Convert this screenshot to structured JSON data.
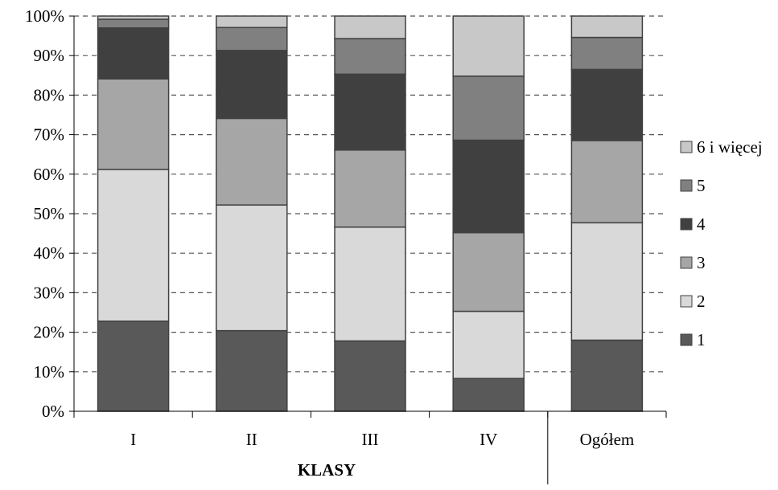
{
  "chart_data": {
    "type": "bar",
    "stacked": true,
    "percent": true,
    "categories": [
      "I",
      "II",
      "III",
      "IV",
      "Ogółem"
    ],
    "xlabel": "KLASY",
    "ylabel": "",
    "ylim": [
      0,
      100
    ],
    "yticks": [
      "0%",
      "10%",
      "20%",
      "30%",
      "40%",
      "50%",
      "60%",
      "70%",
      "80%",
      "90%",
      "100%"
    ],
    "grid": "horizontal dashed",
    "legend_position": "right",
    "series": [
      {
        "name": "1",
        "color": "#595959",
        "values": [
          22.8,
          20.4,
          17.8,
          8.3,
          18.0
        ]
      },
      {
        "name": "2",
        "color": "#d9d9d9",
        "values": [
          38.4,
          31.8,
          28.8,
          17.0,
          29.7
        ]
      },
      {
        "name": "3",
        "color": "#a6a6a6",
        "values": [
          22.9,
          21.9,
          19.5,
          19.9,
          20.8
        ]
      },
      {
        "name": "4",
        "color": "#404040",
        "values": [
          12.9,
          17.2,
          19.2,
          23.4,
          18.0
        ]
      },
      {
        "name": "5",
        "color": "#808080",
        "values": [
          2.2,
          5.8,
          9.0,
          16.2,
          8.1
        ]
      },
      {
        "name": "6 i więcej",
        "color": "#c8c8c8",
        "values": [
          0.8,
          2.9,
          5.7,
          15.2,
          5.4
        ]
      }
    ]
  }
}
